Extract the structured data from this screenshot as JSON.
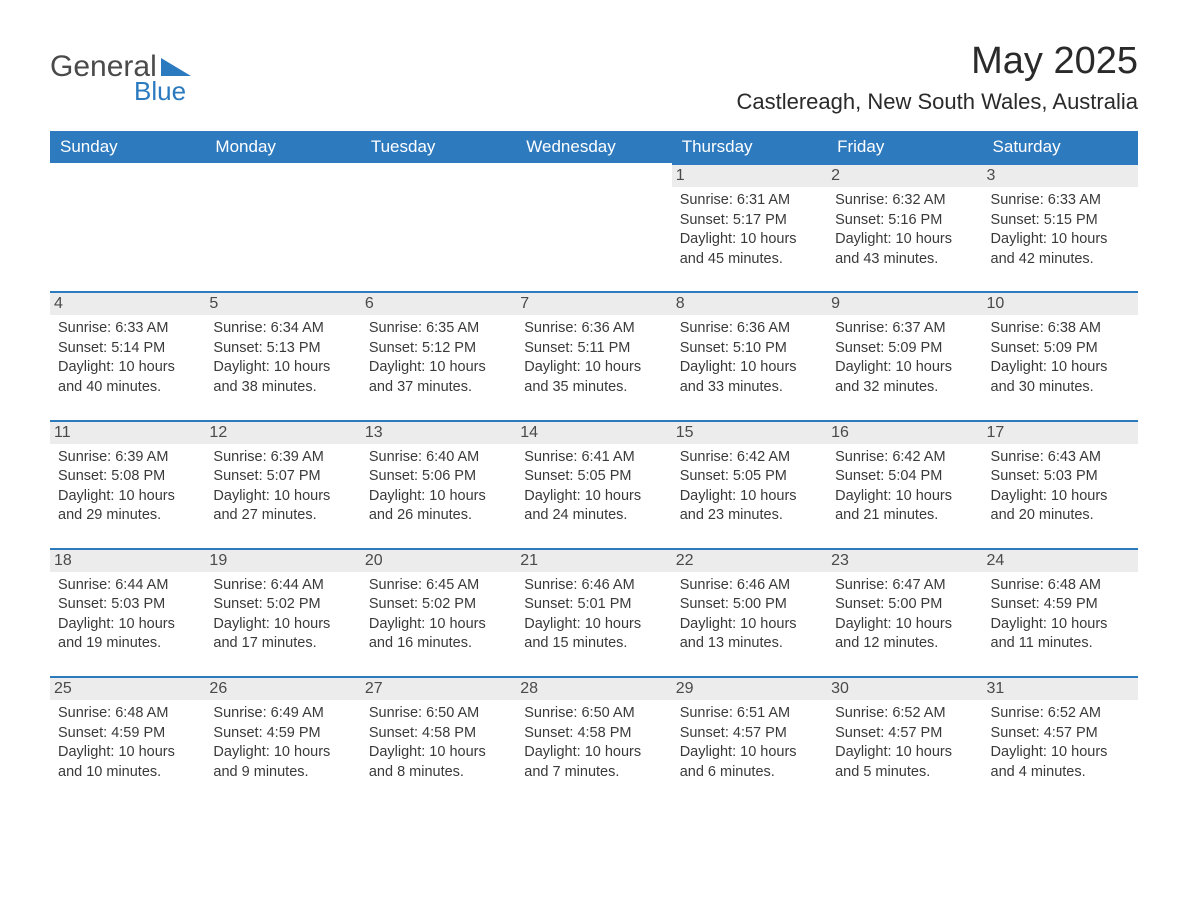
{
  "logo": {
    "general": "General",
    "blue": "Blue"
  },
  "title": "May 2025",
  "location": "Castlereagh, New South Wales, Australia",
  "weekday_headers": [
    "Sunday",
    "Monday",
    "Tuesday",
    "Wednesday",
    "Thursday",
    "Friday",
    "Saturday"
  ],
  "labels": {
    "sunrise": "Sunrise:",
    "sunset": "Sunset:",
    "daylight_prefix": "Daylight:"
  },
  "colors": {
    "header_bg": "#2e7abf",
    "header_text": "#ffffff",
    "daynum_bg": "#ececec",
    "daynum_border": "#2e7abf",
    "text": "#3a3a3a",
    "logo_blue": "#2b7ac0",
    "logo_gray": "#4a4a4a",
    "page_bg": "#ffffff"
  },
  "typography": {
    "title_fontsize": 38,
    "location_fontsize": 22,
    "header_fontsize": 17,
    "daynum_fontsize": 16,
    "body_fontsize": 14.5
  },
  "layout": {
    "columns": 7,
    "rows": 5,
    "first_weekday_index": 4
  },
  "days": [
    {
      "n": 1,
      "sunrise": "6:31 AM",
      "sunset": "5:17 PM",
      "daylight": "10 hours and 45 minutes."
    },
    {
      "n": 2,
      "sunrise": "6:32 AM",
      "sunset": "5:16 PM",
      "daylight": "10 hours and 43 minutes."
    },
    {
      "n": 3,
      "sunrise": "6:33 AM",
      "sunset": "5:15 PM",
      "daylight": "10 hours and 42 minutes."
    },
    {
      "n": 4,
      "sunrise": "6:33 AM",
      "sunset": "5:14 PM",
      "daylight": "10 hours and 40 minutes."
    },
    {
      "n": 5,
      "sunrise": "6:34 AM",
      "sunset": "5:13 PM",
      "daylight": "10 hours and 38 minutes."
    },
    {
      "n": 6,
      "sunrise": "6:35 AM",
      "sunset": "5:12 PM",
      "daylight": "10 hours and 37 minutes."
    },
    {
      "n": 7,
      "sunrise": "6:36 AM",
      "sunset": "5:11 PM",
      "daylight": "10 hours and 35 minutes."
    },
    {
      "n": 8,
      "sunrise": "6:36 AM",
      "sunset": "5:10 PM",
      "daylight": "10 hours and 33 minutes."
    },
    {
      "n": 9,
      "sunrise": "6:37 AM",
      "sunset": "5:09 PM",
      "daylight": "10 hours and 32 minutes."
    },
    {
      "n": 10,
      "sunrise": "6:38 AM",
      "sunset": "5:09 PM",
      "daylight": "10 hours and 30 minutes."
    },
    {
      "n": 11,
      "sunrise": "6:39 AM",
      "sunset": "5:08 PM",
      "daylight": "10 hours and 29 minutes."
    },
    {
      "n": 12,
      "sunrise": "6:39 AM",
      "sunset": "5:07 PM",
      "daylight": "10 hours and 27 minutes."
    },
    {
      "n": 13,
      "sunrise": "6:40 AM",
      "sunset": "5:06 PM",
      "daylight": "10 hours and 26 minutes."
    },
    {
      "n": 14,
      "sunrise": "6:41 AM",
      "sunset": "5:05 PM",
      "daylight": "10 hours and 24 minutes."
    },
    {
      "n": 15,
      "sunrise": "6:42 AM",
      "sunset": "5:05 PM",
      "daylight": "10 hours and 23 minutes."
    },
    {
      "n": 16,
      "sunrise": "6:42 AM",
      "sunset": "5:04 PM",
      "daylight": "10 hours and 21 minutes."
    },
    {
      "n": 17,
      "sunrise": "6:43 AM",
      "sunset": "5:03 PM",
      "daylight": "10 hours and 20 minutes."
    },
    {
      "n": 18,
      "sunrise": "6:44 AM",
      "sunset": "5:03 PM",
      "daylight": "10 hours and 19 minutes."
    },
    {
      "n": 19,
      "sunrise": "6:44 AM",
      "sunset": "5:02 PM",
      "daylight": "10 hours and 17 minutes."
    },
    {
      "n": 20,
      "sunrise": "6:45 AM",
      "sunset": "5:02 PM",
      "daylight": "10 hours and 16 minutes."
    },
    {
      "n": 21,
      "sunrise": "6:46 AM",
      "sunset": "5:01 PM",
      "daylight": "10 hours and 15 minutes."
    },
    {
      "n": 22,
      "sunrise": "6:46 AM",
      "sunset": "5:00 PM",
      "daylight": "10 hours and 13 minutes."
    },
    {
      "n": 23,
      "sunrise": "6:47 AM",
      "sunset": "5:00 PM",
      "daylight": "10 hours and 12 minutes."
    },
    {
      "n": 24,
      "sunrise": "6:48 AM",
      "sunset": "4:59 PM",
      "daylight": "10 hours and 11 minutes."
    },
    {
      "n": 25,
      "sunrise": "6:48 AM",
      "sunset": "4:59 PM",
      "daylight": "10 hours and 10 minutes."
    },
    {
      "n": 26,
      "sunrise": "6:49 AM",
      "sunset": "4:59 PM",
      "daylight": "10 hours and 9 minutes."
    },
    {
      "n": 27,
      "sunrise": "6:50 AM",
      "sunset": "4:58 PM",
      "daylight": "10 hours and 8 minutes."
    },
    {
      "n": 28,
      "sunrise": "6:50 AM",
      "sunset": "4:58 PM",
      "daylight": "10 hours and 7 minutes."
    },
    {
      "n": 29,
      "sunrise": "6:51 AM",
      "sunset": "4:57 PM",
      "daylight": "10 hours and 6 minutes."
    },
    {
      "n": 30,
      "sunrise": "6:52 AM",
      "sunset": "4:57 PM",
      "daylight": "10 hours and 5 minutes."
    },
    {
      "n": 31,
      "sunrise": "6:52 AM",
      "sunset": "4:57 PM",
      "daylight": "10 hours and 4 minutes."
    }
  ]
}
